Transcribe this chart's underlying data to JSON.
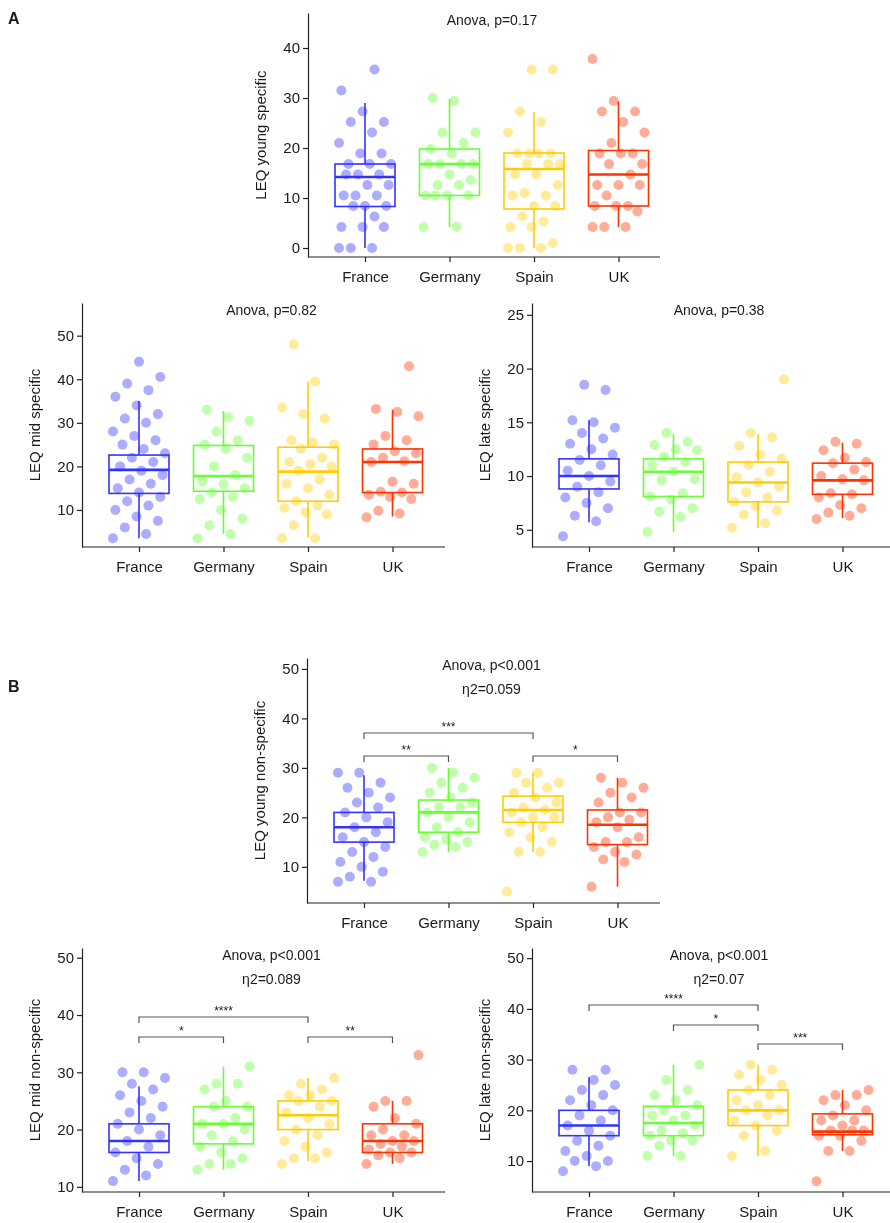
{
  "chart_data": [
    {
      "type": "box",
      "title": "Anova, p=0.17",
      "ylabel": "LEQ young specific",
      "categories": [
        "France",
        "Germany",
        "Spain",
        "UK"
      ],
      "ylim": [
        -1.8,
        47
      ],
      "yticks": [
        0,
        10,
        20,
        30,
        40
      ],
      "annotations": [
        "A"
      ],
      "series": [
        {
          "type": "box",
          "colors": [
            "#3333ff",
            "#66ff33",
            "#ffcc00",
            "#ff3300"
          ],
          "boxes": [
            {
              "low": 0,
              "q1": 8.3,
              "median": 14.2,
              "q3": 16.8,
              "high": 29
            },
            {
              "low": 4.2,
              "q1": 10.5,
              "median": 16.8,
              "q3": 19.8,
              "high": 29.8
            },
            {
              "low": 0,
              "q1": 7.8,
              "median": 15.8,
              "q3": 19,
              "high": 27.2
            },
            {
              "low": 4.2,
              "q1": 8.4,
              "median": 14.7,
              "q3": 19.5,
              "high": 29.3
            }
          ]
        },
        {
          "type": "scatter",
          "color": "#3333ff",
          "x": [
            "France",
            "France",
            "France",
            "France",
            "France",
            "France",
            "France",
            "France",
            "France",
            "France",
            "France",
            "France",
            "France",
            "France",
            "France",
            "France",
            "France",
            "France",
            "France",
            "France",
            "France",
            "France",
            "France",
            "France",
            "France",
            "France",
            "France",
            "France",
            "France",
            "France"
          ],
          "values": [
            0,
            0,
            0,
            4.2,
            4.2,
            4.2,
            6.3,
            8.4,
            8.4,
            8.4,
            10.5,
            10.5,
            10.5,
            12.6,
            12.6,
            14.7,
            14.7,
            14.7,
            16.8,
            16.8,
            16.8,
            18.9,
            18.9,
            21,
            23.1,
            25.2,
            25.2,
            27.3,
            31.5,
            35.7
          ]
        },
        {
          "type": "scatter",
          "color": "#66ff33",
          "x": [
            "Germany",
            "Germany",
            "Germany",
            "Germany",
            "Germany",
            "Germany",
            "Germany",
            "Germany",
            "Germany",
            "Germany",
            "Germany",
            "Germany",
            "Germany",
            "Germany",
            "Germany",
            "Germany",
            "Germany",
            "Germany",
            "Germany",
            "Germany",
            "Germany"
          ],
          "values": [
            4.2,
            4.2,
            10.5,
            10.5,
            10.5,
            10.5,
            12.6,
            12.6,
            13.6,
            14.7,
            16.8,
            16.8,
            16.8,
            16.8,
            18.9,
            19.8,
            21,
            23.1,
            23.1,
            29.4,
            30
          ]
        },
        {
          "type": "scatter",
          "color": "#ffcc00",
          "x": [
            "Spain",
            "Spain",
            "Spain",
            "Spain",
            "Spain",
            "Spain",
            "Spain",
            "Spain",
            "Spain",
            "Spain",
            "Spain",
            "Spain",
            "Spain",
            "Spain",
            "Spain",
            "Spain",
            "Spain",
            "Spain",
            "Spain",
            "Spain",
            "Spain",
            "Spain",
            "Spain",
            "Spain",
            "Spain",
            "Spain",
            "Spain",
            "Spain"
          ],
          "values": [
            0,
            0,
            0,
            1,
            4.2,
            4.2,
            5.3,
            6.3,
            8.4,
            8.4,
            10.5,
            10.5,
            11,
            12.6,
            14.7,
            14.7,
            16.8,
            16.8,
            16.8,
            18.9,
            18.9,
            18.9,
            18.9,
            23.1,
            25.2,
            27.3,
            35.7,
            35.7
          ]
        },
        {
          "type": "scatter",
          "color": "#ff3300",
          "x": [
            "UK",
            "UK",
            "UK",
            "UK",
            "UK",
            "UK",
            "UK",
            "UK",
            "UK",
            "UK",
            "UK",
            "UK",
            "UK",
            "UK",
            "UK",
            "UK",
            "UK",
            "UK",
            "UK",
            "UK",
            "UK",
            "UK",
            "UK",
            "UK"
          ],
          "values": [
            4.2,
            4.2,
            4.2,
            7.3,
            8.4,
            8.4,
            8.4,
            10.5,
            12.6,
            12.6,
            12.6,
            14.7,
            16.8,
            16.8,
            18.9,
            18.9,
            18.9,
            21,
            23.1,
            25.2,
            27.3,
            27.3,
            29.4,
            37.8
          ]
        }
      ]
    },
    {
      "type": "box",
      "title": "Anova, p=0.82",
      "ylabel": "LEQ mid specific",
      "categories": [
        "France",
        "Germany",
        "Spain",
        "UK"
      ],
      "ylim": [
        1.5,
        57.5
      ],
      "yticks": [
        10,
        20,
        30,
        40,
        50
      ],
      "series": [
        {
          "type": "box",
          "colors": [
            "#3333ff",
            "#66ff33",
            "#ffcc00",
            "#ff3300"
          ],
          "boxes": [
            {
              "low": 3.5,
              "q1": 13.8,
              "median": 19.2,
              "q3": 22.6,
              "high": 35
            },
            {
              "low": 4.5,
              "q1": 14.3,
              "median": 17.8,
              "q3": 24.8,
              "high": 32.7
            },
            {
              "low": 3.7,
              "q1": 12,
              "median": 18.8,
              "q3": 24.4,
              "high": 39.5
            },
            {
              "low": 8.5,
              "q1": 14,
              "median": 21,
              "q3": 24,
              "high": 33
            }
          ]
        },
        {
          "type": "scatter",
          "color": "#3333ff",
          "x": [
            "France",
            "France",
            "France",
            "France",
            "France",
            "France",
            "France",
            "France",
            "France",
            "France",
            "France",
            "France",
            "France",
            "France",
            "France",
            "France",
            "France",
            "France",
            "France",
            "France",
            "France",
            "France",
            "France",
            "France",
            "France",
            "France",
            "France",
            "France",
            "France",
            "France",
            "France",
            "France",
            "France"
          ],
          "values": [
            3.5,
            4.5,
            6,
            7.5,
            8.5,
            10,
            11,
            12,
            13,
            14,
            15,
            16,
            17,
            18,
            19,
            20,
            21,
            22,
            23,
            24,
            25,
            26,
            27,
            28,
            30,
            31,
            32,
            34,
            36,
            37.5,
            39,
            40.5,
            44
          ]
        },
        {
          "type": "scatter",
          "color": "#66ff33",
          "x": [
            "Germany",
            "Germany",
            "Germany",
            "Germany",
            "Germany",
            "Germany",
            "Germany",
            "Germany",
            "Germany",
            "Germany",
            "Germany",
            "Germany",
            "Germany",
            "Germany",
            "Germany",
            "Germany",
            "Germany",
            "Germany",
            "Germany",
            "Germany",
            "Germany"
          ],
          "values": [
            3.5,
            4.5,
            6.5,
            8,
            10,
            12.5,
            13,
            14,
            15,
            16,
            16.5,
            18,
            20,
            22,
            24,
            25,
            26,
            28,
            30.5,
            31.3,
            33
          ]
        },
        {
          "type": "scatter",
          "color": "#ffcc00",
          "x": [
            "Spain",
            "Spain",
            "Spain",
            "Spain",
            "Spain",
            "Spain",
            "Spain",
            "Spain",
            "Spain",
            "Spain",
            "Spain",
            "Spain",
            "Spain",
            "Spain",
            "Spain",
            "Spain",
            "Spain",
            "Spain",
            "Spain",
            "Spain",
            "Spain",
            "Spain",
            "Spain",
            "Spain",
            "Spain",
            "Spain"
          ],
          "values": [
            3.5,
            3.5,
            6.5,
            9,
            9.5,
            10.5,
            11,
            12,
            13.5,
            15,
            16,
            17,
            19,
            20,
            20.5,
            21,
            22,
            24,
            25,
            25.5,
            26,
            31,
            32,
            33.5,
            39.5,
            48
          ]
        },
        {
          "type": "scatter",
          "color": "#ff3300",
          "x": [
            "UK",
            "UK",
            "UK",
            "UK",
            "UK",
            "UK",
            "UK",
            "UK",
            "UK",
            "UK",
            "UK",
            "UK",
            "UK",
            "UK",
            "UK",
            "UK",
            "UK",
            "UK",
            "UK",
            "UK",
            "UK",
            "UK"
          ],
          "values": [
            8.3,
            9.2,
            9.8,
            12.5,
            13,
            13.5,
            14,
            14.2,
            16,
            16.5,
            21,
            21.2,
            22,
            23,
            23.5,
            25,
            26,
            27,
            31.5,
            32.5,
            33.2,
            43
          ]
        }
      ]
    },
    {
      "type": "box",
      "title": "Anova, p=0.38",
      "ylabel": "LEQ late specific",
      "categories": [
        "France",
        "Germany",
        "Spain",
        "UK"
      ],
      "ylim": [
        3.4,
        26.1
      ],
      "yticks": [
        5,
        10,
        15,
        20,
        25
      ],
      "series": [
        {
          "type": "box",
          "colors": [
            "#3333ff",
            "#66ff33",
            "#ffcc00",
            "#ff3300"
          ],
          "boxes": [
            {
              "low": 5.7,
              "q1": 8.8,
              "median": 10,
              "q3": 11.6,
              "high": 15.2
            },
            {
              "low": 4.8,
              "q1": 8.1,
              "median": 10.4,
              "q3": 11.6,
              "high": 13.9
            },
            {
              "low": 5.2,
              "q1": 7.6,
              "median": 9.4,
              "q3": 11.3,
              "high": 13.9
            },
            {
              "low": 6.1,
              "q1": 8.3,
              "median": 9.6,
              "q3": 11.2,
              "high": 13.1
            }
          ]
        },
        {
          "type": "scatter",
          "color": "#3333ff",
          "x": [
            "France",
            "France",
            "France",
            "France",
            "France",
            "France",
            "France",
            "France",
            "France",
            "France",
            "France",
            "France",
            "France",
            "France",
            "France",
            "France",
            "France",
            "France",
            "France",
            "France",
            "France",
            "France",
            "France"
          ],
          "values": [
            4.4,
            5.8,
            6.3,
            7,
            7.5,
            8,
            8.5,
            9,
            9.5,
            10,
            10.5,
            11,
            11.5,
            12,
            12.5,
            13,
            13.5,
            14,
            14.5,
            15,
            15.2,
            18,
            18.5
          ]
        },
        {
          "type": "scatter",
          "color": "#66ff33",
          "x": [
            "Germany",
            "Germany",
            "Germany",
            "Germany",
            "Germany",
            "Germany",
            "Germany",
            "Germany",
            "Germany",
            "Germany",
            "Germany",
            "Germany",
            "Germany",
            "Germany",
            "Germany",
            "Germany",
            "Germany",
            "Germany"
          ],
          "values": [
            4.8,
            6.2,
            6.7,
            7,
            7.8,
            8.1,
            8.4,
            9.6,
            9.7,
            10.4,
            11,
            11.3,
            11.8,
            12.4,
            12.5,
            12.9,
            13.2,
            14
          ]
        },
        {
          "type": "scatter",
          "color": "#ffcc00",
          "x": [
            "Spain",
            "Spain",
            "Spain",
            "Spain",
            "Spain",
            "Spain",
            "Spain",
            "Spain",
            "Spain",
            "Spain",
            "Spain",
            "Spain",
            "Spain",
            "Spain",
            "Spain",
            "Spain",
            "Spain",
            "Spain",
            "Spain"
          ],
          "values": [
            5.2,
            5.6,
            6.4,
            6.8,
            7.2,
            7.6,
            8,
            8.5,
            9,
            9.4,
            9.9,
            10.4,
            11,
            11.6,
            12,
            12.8,
            13.6,
            14,
            19
          ]
        },
        {
          "type": "scatter",
          "color": "#ff3300",
          "x": [
            "UK",
            "UK",
            "UK",
            "UK",
            "UK",
            "UK",
            "UK",
            "UK",
            "UK",
            "UK",
            "UK",
            "UK",
            "UK",
            "UK",
            "UK",
            "UK",
            "UK",
            "UK"
          ],
          "values": [
            6,
            6.3,
            6.6,
            7,
            7.3,
            8,
            8.3,
            8.4,
            9.6,
            9.7,
            10,
            10.6,
            11.2,
            11.3,
            11.7,
            12.4,
            13,
            13.2
          ]
        }
      ]
    },
    {
      "type": "box",
      "title": "Anova, p<0.001",
      "subtitle": "η2=0.059",
      "ylabel": "LEQ young non-specific",
      "categories": [
        "France",
        "Germany",
        "Spain",
        "UK"
      ],
      "ylim": [
        2.7,
        52.2
      ],
      "yticks": [
        10,
        20,
        30,
        40,
        50
      ],
      "annotations": [
        "B",
        "***",
        "**",
        "*"
      ],
      "series": [
        {
          "type": "box",
          "colors": [
            "#3333ff",
            "#66ff33",
            "#ffcc00",
            "#ff3300"
          ],
          "boxes": [
            {
              "low": 7.2,
              "q1": 15,
              "median": 18,
              "q3": 21,
              "high": 28.5
            },
            {
              "low": 13,
              "q1": 17,
              "median": 21,
              "q3": 23.5,
              "high": 30
            },
            {
              "low": 13,
              "q1": 19,
              "median": 21.5,
              "q3": 24.3,
              "high": 29
            },
            {
              "low": 6,
              "q1": 14.5,
              "median": 18.5,
              "q3": 21.5,
              "high": 28
            }
          ]
        },
        {
          "type": "scatter",
          "color": "#3333ff",
          "x": [
            "France",
            "France",
            "France",
            "France",
            "France",
            "France",
            "France",
            "France",
            "France",
            "France",
            "France",
            "France",
            "France",
            "France",
            "France",
            "France",
            "France",
            "France",
            "France",
            "France",
            "France",
            "France",
            "France",
            "France"
          ],
          "values": [
            7,
            7,
            8,
            9,
            10,
            11,
            12,
            13,
            14,
            15,
            16,
            17,
            18,
            19,
            20,
            21,
            22,
            23,
            24,
            25,
            26,
            27,
            29,
            29
          ]
        },
        {
          "type": "scatter",
          "color": "#66ff33",
          "x": [
            "Germany",
            "Germany",
            "Germany",
            "Germany",
            "Germany",
            "Germany",
            "Germany",
            "Germany",
            "Germany",
            "Germany",
            "Germany",
            "Germany",
            "Germany",
            "Germany",
            "Germany",
            "Germany",
            "Germany",
            "Germany",
            "Germany",
            "Germany",
            "Germany"
          ],
          "values": [
            13,
            14,
            14.5,
            15,
            15.5,
            16,
            17,
            18,
            19,
            20,
            21,
            22,
            22,
            23,
            24,
            25,
            26,
            27,
            28,
            29,
            30
          ]
        },
        {
          "type": "scatter",
          "color": "#ffcc00",
          "x": [
            "Spain",
            "Spain",
            "Spain",
            "Spain",
            "Spain",
            "Spain",
            "Spain",
            "Spain",
            "Spain",
            "Spain",
            "Spain",
            "Spain",
            "Spain",
            "Spain",
            "Spain",
            "Spain",
            "Spain",
            "Spain",
            "Spain",
            "Spain",
            "Spain"
          ],
          "values": [
            5,
            13,
            13,
            15,
            16,
            17,
            18,
            19,
            20,
            20,
            21,
            21.5,
            22,
            23,
            24,
            25,
            26,
            27,
            27,
            29,
            29
          ]
        },
        {
          "type": "scatter",
          "color": "#ff3300",
          "x": [
            "UK",
            "UK",
            "UK",
            "UK",
            "UK",
            "UK",
            "UK",
            "UK",
            "UK",
            "UK",
            "UK",
            "UK",
            "UK",
            "UK",
            "UK",
            "UK",
            "UK",
            "UK",
            "UK",
            "UK",
            "UK"
          ],
          "values": [
            6,
            11,
            11.5,
            12.5,
            13,
            14,
            15,
            15,
            16,
            18,
            19,
            19.5,
            20,
            21,
            21,
            23,
            24,
            25,
            26,
            27,
            28
          ]
        }
      ]
    },
    {
      "type": "box",
      "title": "Anova, p<0.001",
      "subtitle": "η2=0.089",
      "ylabel": "LEQ mid non-specific",
      "categories": [
        "France",
        "Germany",
        "Spain",
        "UK"
      ],
      "ylim": [
        9.1,
        51.7
      ],
      "yticks": [
        10,
        20,
        30,
        40,
        50
      ],
      "annotations": [
        "****",
        "*",
        "**"
      ],
      "series": [
        {
          "type": "box",
          "colors": [
            "#3333ff",
            "#66ff33",
            "#ffcc00",
            "#ff3300"
          ],
          "boxes": [
            {
              "low": 11,
              "q1": 16,
              "median": 18,
              "q3": 21,
              "high": 27.5
            },
            {
              "low": 13,
              "q1": 17.5,
              "median": 21,
              "q3": 24,
              "high": 31
            },
            {
              "low": 14.5,
              "q1": 20,
              "median": 22.5,
              "q3": 25,
              "high": 29
            },
            {
              "low": 14,
              "q1": 16,
              "median": 18,
              "q3": 21,
              "high": 25
            }
          ]
        },
        {
          "type": "scatter",
          "color": "#3333ff",
          "x": [
            "France",
            "France",
            "France",
            "France",
            "France",
            "France",
            "France",
            "France",
            "France",
            "France",
            "France",
            "France",
            "France",
            "France",
            "France",
            "France",
            "France",
            "France",
            "France",
            "France",
            "France"
          ],
          "values": [
            11,
            12,
            13,
            14,
            15,
            16,
            17,
            18,
            19,
            20,
            21,
            22,
            23,
            24,
            25,
            26,
            27,
            28,
            29,
            30,
            30
          ]
        },
        {
          "type": "scatter",
          "color": "#66ff33",
          "x": [
            "Germany",
            "Germany",
            "Germany",
            "Germany",
            "Germany",
            "Germany",
            "Germany",
            "Germany",
            "Germany",
            "Germany",
            "Germany",
            "Germany",
            "Germany",
            "Germany",
            "Germany",
            "Germany",
            "Germany",
            "Germany",
            "Germany"
          ],
          "values": [
            13,
            14,
            14,
            15,
            16,
            17,
            18,
            19,
            20,
            21,
            21,
            22,
            24,
            24,
            25,
            27,
            28,
            28,
            31
          ]
        },
        {
          "type": "scatter",
          "color": "#ffcc00",
          "x": [
            "Spain",
            "Spain",
            "Spain",
            "Spain",
            "Spain",
            "Spain",
            "Spain",
            "Spain",
            "Spain",
            "Spain",
            "Spain",
            "Spain",
            "Spain",
            "Spain",
            "Spain",
            "Spain",
            "Spain",
            "Spain",
            "Spain"
          ],
          "values": [
            14,
            15,
            15,
            16,
            17,
            18,
            19,
            20,
            21,
            22,
            23,
            24,
            25,
            25,
            26,
            26,
            27,
            28,
            29
          ]
        },
        {
          "type": "scatter",
          "color": "#ff3300",
          "x": [
            "UK",
            "UK",
            "UK",
            "UK",
            "UK",
            "UK",
            "UK",
            "UK",
            "UK",
            "UK",
            "UK",
            "UK",
            "UK",
            "UK",
            "UK",
            "UK",
            "UK",
            "UK",
            "UK"
          ],
          "values": [
            14,
            15,
            15.5,
            16,
            16,
            16.5,
            17,
            17.5,
            18,
            18,
            19,
            19,
            20,
            21,
            22,
            24,
            25,
            25,
            33
          ]
        }
      ]
    },
    {
      "type": "box",
      "title": "Anova, p<0.001",
      "subtitle": "η2=0.07",
      "ylabel": "LEQ late non-specific",
      "categories": [
        "France",
        "Germany",
        "Spain",
        "UK"
      ],
      "ylim": [
        3.9,
        52
      ],
      "yticks": [
        10,
        20,
        30,
        40,
        50
      ],
      "annotations": [
        "****",
        "*",
        "***"
      ],
      "series": [
        {
          "type": "box",
          "colors": [
            "#3333ff",
            "#66ff33",
            "#ffcc00",
            "#ff3300"
          ],
          "boxes": [
            {
              "low": 9,
              "q1": 15,
              "median": 17,
              "q3": 20,
              "high": 26.5
            },
            {
              "low": 11,
              "q1": 15,
              "median": 17.5,
              "q3": 20.8,
              "high": 29
            },
            {
              "low": 11,
              "q1": 17,
              "median": 20,
              "q3": 24,
              "high": 29
            },
            {
              "low": 12,
              "q1": 15.2,
              "median": 15.8,
              "q3": 19.3,
              "high": 24
            }
          ]
        },
        {
          "type": "scatter",
          "color": "#3333ff",
          "x": [
            "France",
            "France",
            "France",
            "France",
            "France",
            "France",
            "France",
            "France",
            "France",
            "France",
            "France",
            "France",
            "France",
            "France",
            "France",
            "France",
            "France",
            "France",
            "France",
            "France",
            "France",
            "France"
          ],
          "values": [
            8,
            9,
            10,
            10,
            11,
            12,
            13,
            14,
            15,
            16,
            17,
            18,
            19,
            20,
            21,
            22,
            23,
            24,
            25,
            26,
            28,
            28
          ]
        },
        {
          "type": "scatter",
          "color": "#66ff33",
          "x": [
            "Germany",
            "Germany",
            "Germany",
            "Germany",
            "Germany",
            "Germany",
            "Germany",
            "Germany",
            "Germany",
            "Germany",
            "Germany",
            "Germany",
            "Germany",
            "Germany",
            "Germany",
            "Germany",
            "Germany",
            "Germany",
            "Germany"
          ],
          "values": [
            11,
            11,
            13,
            14,
            14,
            15,
            15.5,
            16,
            17,
            18,
            19,
            19,
            20,
            21,
            22,
            23,
            24,
            26,
            29
          ]
        },
        {
          "type": "scatter",
          "color": "#ffcc00",
          "x": [
            "Spain",
            "Spain",
            "Spain",
            "Spain",
            "Spain",
            "Spain",
            "Spain",
            "Spain",
            "Spain",
            "Spain",
            "Spain",
            "Spain",
            "Spain",
            "Spain",
            "Spain",
            "Spain",
            "Spain",
            "Spain"
          ],
          "values": [
            11,
            12,
            15,
            16,
            17,
            18,
            19,
            20,
            20,
            21,
            22,
            23,
            24,
            25,
            26,
            27,
            28,
            29
          ]
        },
        {
          "type": "scatter",
          "color": "#ff3300",
          "x": [
            "UK",
            "UK",
            "UK",
            "UK",
            "UK",
            "UK",
            "UK",
            "UK",
            "UK",
            "UK",
            "UK",
            "UK",
            "UK",
            "UK",
            "UK",
            "UK",
            "UK",
            "UK",
            "UK"
          ],
          "values": [
            6,
            12,
            12,
            14,
            15,
            15,
            16,
            16,
            16,
            17,
            18,
            18,
            19,
            20,
            21,
            22,
            23,
            23,
            24
          ]
        }
      ]
    }
  ]
}
